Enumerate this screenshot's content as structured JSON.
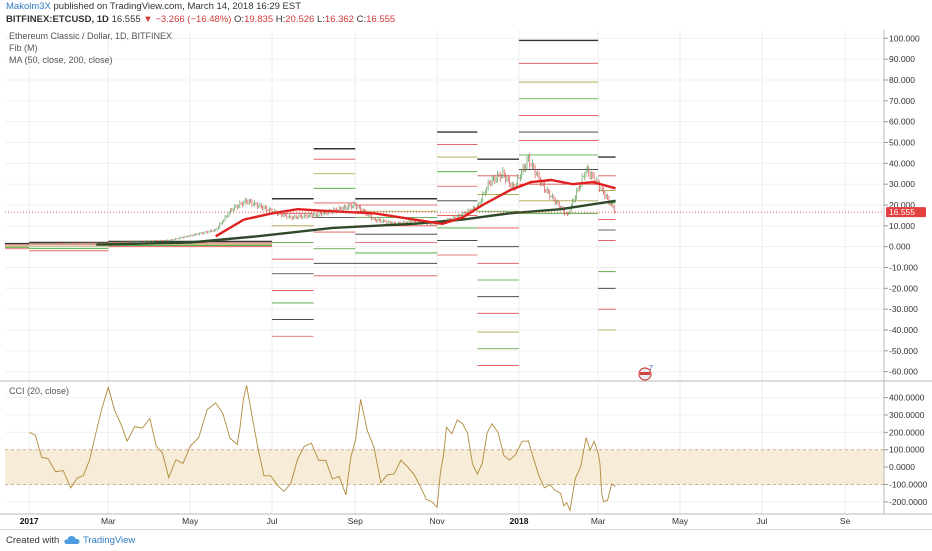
{
  "header": {
    "user": "Makolm3X",
    "published": "published on TradingView.com, March 14, 2018 16:29 EST",
    "symbol": "BITFINEX:ETCUSD, 1D",
    "price": "16.555",
    "change_arrow": "▼",
    "change": "−3.266 (−16.48%)",
    "o_label": "O:",
    "o_val": "19.835",
    "h_label": "H:",
    "h_val": "20.526",
    "l_label": "L:",
    "l_val": "16.362",
    "c_label": "C:",
    "c_val": "16.555"
  },
  "legend": {
    "title": "Ethereum Classic / Dollar, 1D, BITFINEX",
    "fib": "Fib (M)",
    "ma": "MA (50, close, 200, close)",
    "cci": "CCI (20, close)"
  },
  "price_tag": "16.555",
  "event_badge": "7",
  "footer": {
    "created": "Created with",
    "brand": "TradingView"
  },
  "colors": {
    "ma50": "#e02020",
    "ma200": "#2f4a2a",
    "cci_line": "#b08a3a",
    "cci_band": "#f7ecd8",
    "price_line": "#e54040",
    "tag_bg": "#e54040",
    "fib_dark": "#333333",
    "fib_red": "#e05050",
    "fib_green": "#43a02f",
    "fib_olive": "#a8a040",
    "candle_up": "#5aa05a",
    "candle_down": "#d85050"
  },
  "chart_data": [
    {
      "type": "candlestick",
      "title": "Ethereum Classic / Dollar, 1D, BITFINEX",
      "x_ticks": [
        "2017",
        "Mar",
        "May",
        "Jul",
        "Sep",
        "Nov",
        "2018",
        "Mar",
        "May",
        "Jul",
        "Se"
      ],
      "y_ticks": [
        "100.000",
        "90.000",
        "80.000",
        "70.000",
        "60.000",
        "50.000",
        "40.000",
        "30.000",
        "20.000",
        "10.000",
        "0.000",
        "-10.000",
        "-20.000",
        "-30.000",
        "-40.000",
        "-50.000",
        "-60.000"
      ],
      "ylim": [
        -64,
        104
      ],
      "last_price": 16.555,
      "series": [
        {
          "name": "MA 50",
          "values": [
            {
              "x": "2017-05-20",
              "y": 5
            },
            {
              "x": "2017-06-10",
              "y": 13
            },
            {
              "x": "2017-07-01",
              "y": 16
            },
            {
              "x": "2017-07-20",
              "y": 18
            },
            {
              "x": "2017-08-15",
              "y": 17
            },
            {
              "x": "2017-09-15",
              "y": 16
            },
            {
              "x": "2017-10-15",
              "y": 13
            },
            {
              "x": "2017-11-05",
              "y": 11
            },
            {
              "x": "2017-11-20",
              "y": 14
            },
            {
              "x": "2017-12-05",
              "y": 20
            },
            {
              "x": "2017-12-25",
              "y": 27
            },
            {
              "x": "2018-01-10",
              "y": 31
            },
            {
              "x": "2018-01-25",
              "y": 32
            },
            {
              "x": "2018-02-10",
              "y": 30
            },
            {
              "x": "2018-02-25",
              "y": 31
            },
            {
              "x": "2018-03-14",
              "y": 28
            }
          ]
        },
        {
          "name": "MA 200",
          "values": [
            {
              "x": "2017-02-20",
              "y": 1
            },
            {
              "x": "2017-05-01",
              "y": 2
            },
            {
              "x": "2017-06-20",
              "y": 5
            },
            {
              "x": "2017-08-15",
              "y": 9
            },
            {
              "x": "2017-10-15",
              "y": 11
            },
            {
              "x": "2017-11-20",
              "y": 13
            },
            {
              "x": "2017-12-25",
              "y": 16
            },
            {
              "x": "2018-02-01",
              "y": 18
            },
            {
              "x": "2018-03-14",
              "y": 22
            }
          ]
        },
        {
          "name": "Price",
          "values": [
            {
              "x": "2017-01-01",
              "y": 1.4
            },
            {
              "x": "2017-03-01",
              "y": 2
            },
            {
              "x": "2017-04-15",
              "y": 3
            },
            {
              "x": "2017-05-20",
              "y": 8
            },
            {
              "x": "2017-06-01",
              "y": 18
            },
            {
              "x": "2017-06-12",
              "y": 22
            },
            {
              "x": "2017-07-01",
              "y": 17
            },
            {
              "x": "2017-07-15",
              "y": 14
            },
            {
              "x": "2017-08-01",
              "y": 15
            },
            {
              "x": "2017-08-20",
              "y": 18
            },
            {
              "x": "2017-09-01",
              "y": 20
            },
            {
              "x": "2017-09-15",
              "y": 13
            },
            {
              "x": "2017-10-01",
              "y": 11
            },
            {
              "x": "2017-10-15",
              "y": 12
            },
            {
              "x": "2017-11-01",
              "y": 11
            },
            {
              "x": "2017-11-15",
              "y": 14
            },
            {
              "x": "2017-12-01",
              "y": 19
            },
            {
              "x": "2017-12-10",
              "y": 31
            },
            {
              "x": "2017-12-20",
              "y": 35
            },
            {
              "x": "2017-12-28",
              "y": 28
            },
            {
              "x": "2018-01-08",
              "y": 42
            },
            {
              "x": "2018-01-20",
              "y": 28
            },
            {
              "x": "2018-02-06",
              "y": 15
            },
            {
              "x": "2018-02-20",
              "y": 37
            },
            {
              "x": "2018-03-01",
              "y": 30
            },
            {
              "x": "2018-03-14",
              "y": 16.555
            }
          ]
        }
      ]
    },
    {
      "type": "line",
      "title": "CCI (20, close)",
      "y_ticks": [
        "400.0000",
        "300.0000",
        "200.0000",
        "100.0000",
        "0.0000",
        "-100.0000",
        "-200.0000"
      ],
      "ylim": [
        -270,
        490
      ],
      "band": [
        -100,
        100
      ],
      "series": [
        {
          "name": "CCI",
          "values": [
            {
              "x": "2017-01-01",
              "y": 200
            },
            {
              "x": "2017-01-15",
              "y": 50
            },
            {
              "x": "2017-02-01",
              "y": -120
            },
            {
              "x": "2017-02-15",
              "y": 40
            },
            {
              "x": "2017-03-01",
              "y": 460
            },
            {
              "x": "2017-03-15",
              "y": 150
            },
            {
              "x": "2017-04-01",
              "y": 280
            },
            {
              "x": "2017-04-15",
              "y": -60
            },
            {
              "x": "2017-05-01",
              "y": 120
            },
            {
              "x": "2017-05-20",
              "y": 370
            },
            {
              "x": "2017-06-05",
              "y": 130
            },
            {
              "x": "2017-06-12",
              "y": 470
            },
            {
              "x": "2017-06-25",
              "y": -50
            },
            {
              "x": "2017-07-10",
              "y": -140
            },
            {
              "x": "2017-07-25",
              "y": 120
            },
            {
              "x": "2017-08-10",
              "y": 40
            },
            {
              "x": "2017-08-25",
              "y": -160
            },
            {
              "x": "2017-09-05",
              "y": 390
            },
            {
              "x": "2017-09-20",
              "y": -90
            },
            {
              "x": "2017-10-05",
              "y": 40
            },
            {
              "x": "2017-10-20",
              "y": -120
            },
            {
              "x": "2017-11-01",
              "y": -230
            },
            {
              "x": "2017-11-08",
              "y": 230
            },
            {
              "x": "2017-11-20",
              "y": 250
            },
            {
              "x": "2017-12-01",
              "y": -40
            },
            {
              "x": "2017-12-12",
              "y": 250
            },
            {
              "x": "2017-12-25",
              "y": 40
            },
            {
              "x": "2018-01-08",
              "y": 150
            },
            {
              "x": "2018-01-20",
              "y": -120
            },
            {
              "x": "2018-02-01",
              "y": -150
            },
            {
              "x": "2018-02-08",
              "y": -250
            },
            {
              "x": "2018-02-20",
              "y": 170
            },
            {
              "x": "2018-03-01",
              "y": 80
            },
            {
              "x": "2018-03-05",
              "y": -200
            },
            {
              "x": "2018-03-14",
              "y": -110
            }
          ]
        }
      ]
    }
  ]
}
